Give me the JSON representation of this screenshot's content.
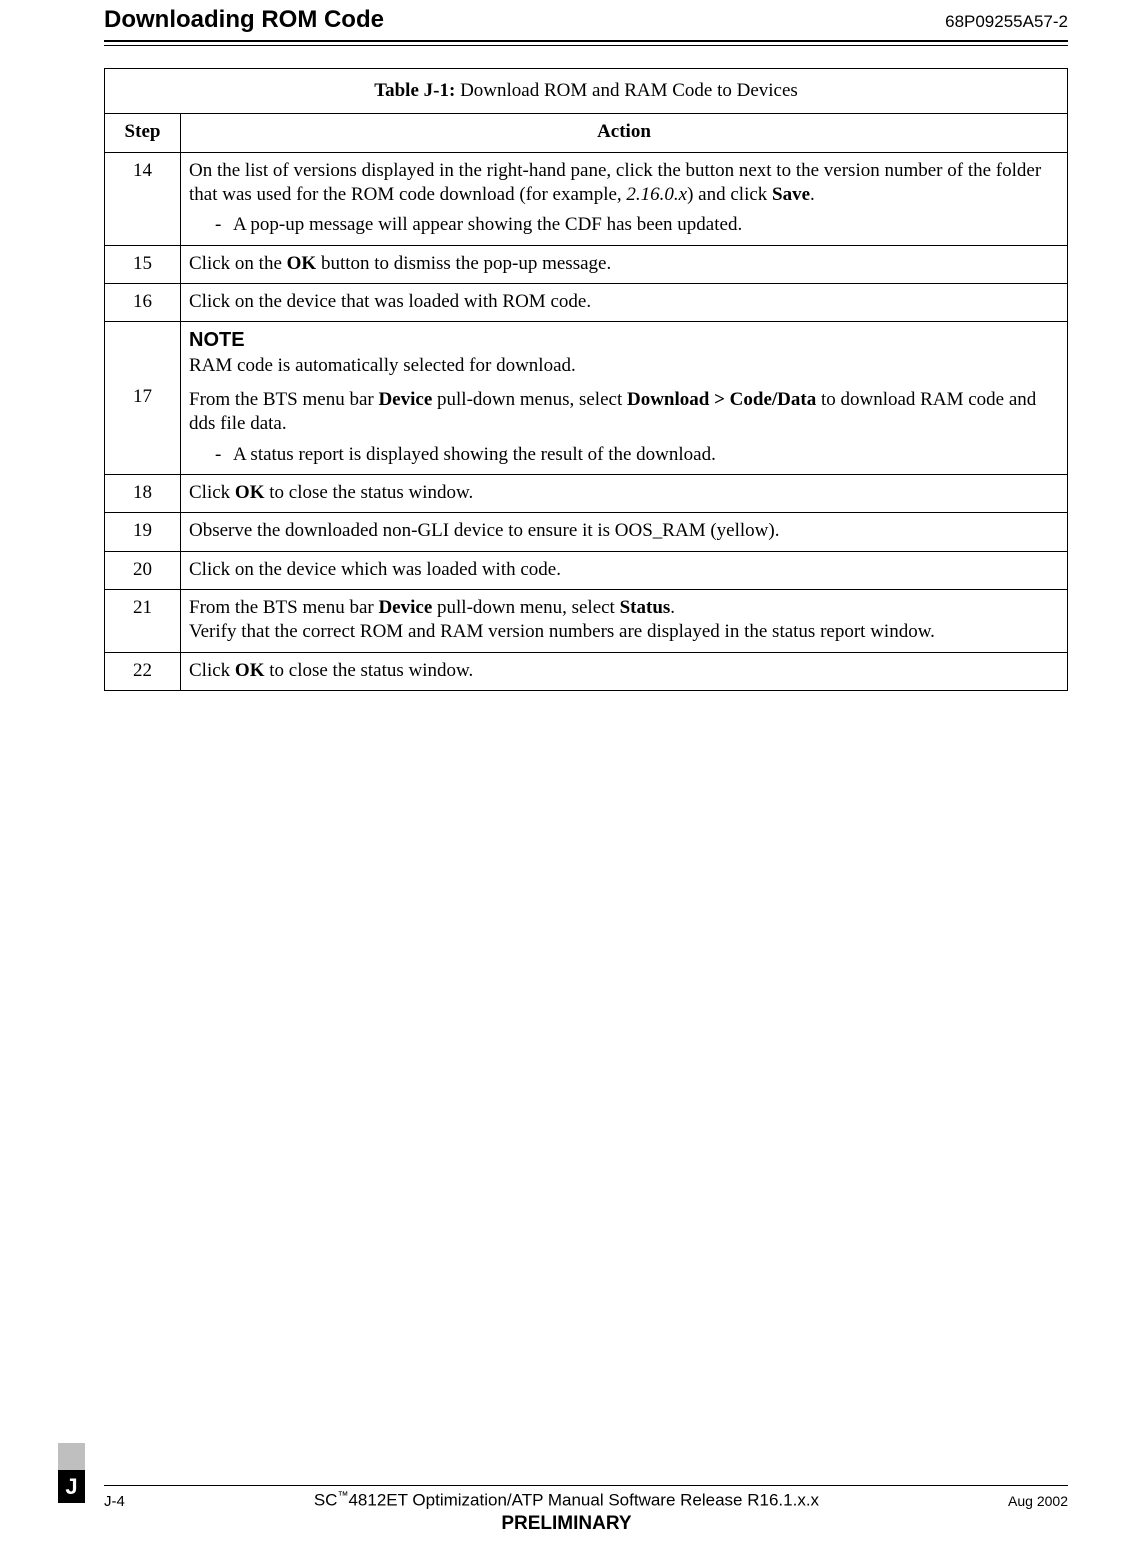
{
  "header": {
    "title": "Downloading ROM Code",
    "doc_number": "68P09255A57-2"
  },
  "table": {
    "caption_bold": "Table J-1:",
    "caption_rest": " Download ROM and RAM Code to Devices",
    "col_step": "Step",
    "col_action": "Action",
    "rows": {
      "r14": {
        "step": "14",
        "p1a": "On the list of versions displayed in the right-hand pane, click the button next to the version number of the folder that was used for the ROM code download (for example, ",
        "p1_em": "2.16.0.x",
        "p1b": ") and click ",
        "p1_bold": "Save",
        "p1c": ".",
        "bullet": "A pop-up message will appear showing the CDF has been updated."
      },
      "r15": {
        "step": "15",
        "a1": "Click on the ",
        "a_bold": "OK",
        "a2": " button to dismiss the pop-up message."
      },
      "r16": {
        "step": "16",
        "a": "Click on the device that was loaded with ROM code."
      },
      "r17": {
        "step": "17",
        "note_label": "NOTE",
        "note_text": "RAM code is automatically selected for download.",
        "p1a": "From the BTS menu bar ",
        "p1_b1": "Device",
        "p1b": " pull-down menus, select ",
        "p1_b2": "Download > Code/Data",
        "p1c": " to download RAM code and dds file data.",
        "bullet": "A status report is displayed showing the result of the download."
      },
      "r18": {
        "step": "18",
        "a1": "Click ",
        "a_bold": "OK",
        "a2": " to close the status window."
      },
      "r19": {
        "step": "19",
        "a": "Observe the downloaded non-GLI device to ensure it is OOS_RAM (yellow)."
      },
      "r20": {
        "step": "20",
        "a": "Click on the device which was loaded with code."
      },
      "r21": {
        "step": "21",
        "p1a": "From the BTS menu bar ",
        "p1_b1": "Device",
        "p1b": " pull-down menu, select ",
        "p1_b2": "Status",
        "p1c": ".",
        "p2": "Verify that the correct ROM and RAM version numbers are displayed in the status report window."
      },
      "r22": {
        "step": "22",
        "a1": "Click ",
        "a_bold": "OK",
        "a2": " to close the status window."
      }
    }
  },
  "tab_letter": "J",
  "footer": {
    "page": "J-4",
    "center1a": "SC",
    "center1_tm": "™",
    "center1b": "4812ET Optimization/ATP Manual Software Release R16.1.x.x",
    "preliminary": "PRELIMINARY",
    "date": "Aug 2002"
  }
}
